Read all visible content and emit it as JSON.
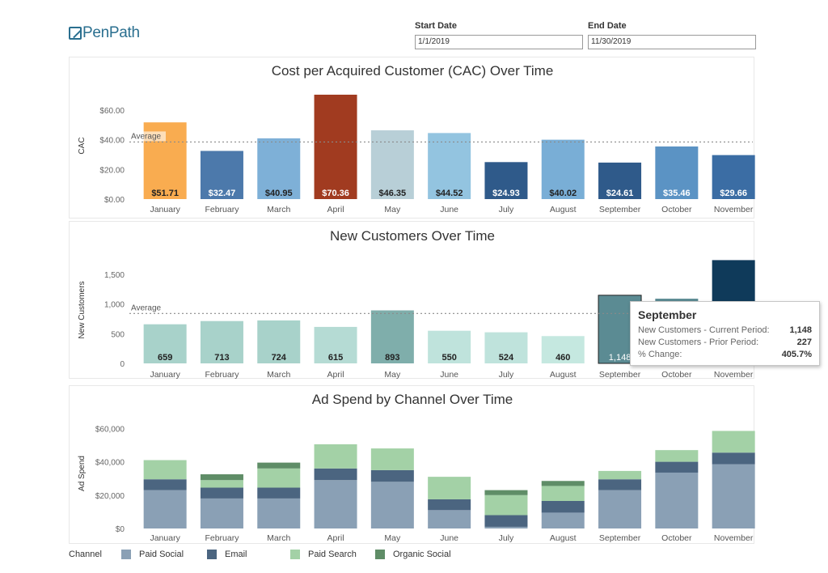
{
  "logo": {
    "text": "PenPath"
  },
  "filters": {
    "start": {
      "label": "Start Date",
      "value": "1/1/2019"
    },
    "end": {
      "label": "End Date",
      "value": "11/30/2019"
    }
  },
  "colors": {
    "avg_line": "#8a8a8a",
    "paid_social": "#8aa0b5",
    "email": "#4b6580",
    "paid_search": "#a3d1a6",
    "organic_social": "#5f8d67"
  },
  "chart_data": [
    {
      "id": "cac",
      "type": "bar",
      "title": "Cost per Acquired Customer (CAC) Over Time",
      "ylabel": "CAC",
      "ylim": [
        0,
        72
      ],
      "yticks": [
        0,
        20,
        40,
        60
      ],
      "ytick_labels": [
        "$0.00",
        "$20.00",
        "$40.00",
        "$60.00"
      ],
      "categories": [
        "January",
        "February",
        "March",
        "April",
        "May",
        "June",
        "July",
        "August",
        "September",
        "October",
        "November"
      ],
      "values": [
        51.71,
        32.47,
        40.95,
        70.36,
        46.35,
        44.52,
        24.93,
        40.02,
        24.61,
        35.46,
        29.66
      ],
      "value_labels": [
        "$51.71",
        "$32.47",
        "$40.95",
        "$70.36",
        "$46.35",
        "$44.52",
        "$24.93",
        "$40.02",
        "$24.61",
        "$35.46",
        "$29.66"
      ],
      "bar_colors": [
        "#f9ac50",
        "#4c79ab",
        "#7eb0d7",
        "#a13b20",
        "#b8cfd7",
        "#93c4e0",
        "#2f5a8a",
        "#79aed6",
        "#2f5a8a",
        "#5b93c4",
        "#3b6da4"
      ],
      "label_colors": [
        "#222222",
        "#ffffff",
        "#222222",
        "#ffffff",
        "#222222",
        "#222222",
        "#ffffff",
        "#222222",
        "#ffffff",
        "#ffffff",
        "#ffffff"
      ],
      "reference_line": {
        "label": "Average",
        "value": 38.5
      },
      "grid": false
    },
    {
      "id": "new_customers",
      "type": "bar",
      "title": "New Customers Over Time",
      "ylabel": "New Customers",
      "ylim": [
        0,
        1800
      ],
      "yticks": [
        0,
        500,
        1000,
        1500
      ],
      "ytick_labels": [
        "0",
        "500",
        "1,000",
        "1,500"
      ],
      "categories": [
        "January",
        "February",
        "March",
        "April",
        "May",
        "June",
        "July",
        "August",
        "September",
        "October",
        "November"
      ],
      "values": [
        659,
        713,
        724,
        615,
        893,
        550,
        524,
        460,
        1148,
        1090,
        1740
      ],
      "value_labels": [
        "659",
        "713",
        "724",
        "615",
        "893",
        "550",
        "524",
        "460",
        "1,148",
        "",
        ""
      ],
      "bar_colors": [
        "#a8d2ca",
        "#a8d2ca",
        "#a8d2ca",
        "#b5dbd4",
        "#7faeab",
        "#bfe3dc",
        "#bfe3dc",
        "#c5e8e0",
        "#5b8b93",
        "#5b8b93",
        "#0f3a5a"
      ],
      "label_colors": [
        "#222222",
        "#222222",
        "#222222",
        "#222222",
        "#222222",
        "#222222",
        "#222222",
        "#222222",
        "#ffffff",
        "#ffffff",
        "#ffffff"
      ],
      "highlight_index": 8,
      "reference_line": {
        "label": "Average",
        "value": 841
      },
      "grid": false
    },
    {
      "id": "ad_spend",
      "type": "bar",
      "stacked": true,
      "title": "Ad Spend by Channel Over Time",
      "ylabel": "Ad Spend",
      "ylim": [
        0,
        66000
      ],
      "yticks": [
        0,
        20000,
        40000,
        60000
      ],
      "ytick_labels": [
        "$0",
        "$20,000",
        "$40,000",
        "$60,000"
      ],
      "categories": [
        "January",
        "February",
        "March",
        "April",
        "May",
        "June",
        "July",
        "August",
        "September",
        "October",
        "November"
      ],
      "series": [
        {
          "name": "Paid Social",
          "color": "#8aa0b5",
          "values": [
            23000,
            18000,
            18000,
            29000,
            28000,
            11000,
            1000,
            9500,
            23000,
            33500,
            38500
          ]
        },
        {
          "name": "Email",
          "color": "#4b6580",
          "values": [
            6500,
            6500,
            6500,
            7000,
            7000,
            6500,
            7000,
            7000,
            6500,
            6500,
            7000
          ]
        },
        {
          "name": "Paid Search",
          "color": "#a3d1a6",
          "values": [
            11500,
            4500,
            11500,
            14500,
            13000,
            13500,
            12000,
            9000,
            5000,
            7000,
            13000
          ]
        },
        {
          "name": "Organic Social",
          "color": "#5f8d67",
          "values": [
            0,
            3500,
            3500,
            0,
            0,
            0,
            3000,
            3000,
            0,
            0,
            0
          ]
        }
      ],
      "grid": false
    }
  ],
  "legend": {
    "title": "Channel",
    "items": [
      {
        "name": "Paid Social",
        "color": "#8aa0b5"
      },
      {
        "name": "Email",
        "color": "#4b6580"
      },
      {
        "name": "Paid Search",
        "color": "#a3d1a6"
      },
      {
        "name": "Organic Social",
        "color": "#5f8d67"
      }
    ]
  },
  "tooltip": {
    "title": "September",
    "rows": [
      {
        "label": "New Customers - Current Period:",
        "value": "1,148"
      },
      {
        "label": "New Customers - Prior Period:",
        "value": "227"
      },
      {
        "label": "% Change:",
        "value": "405.7%"
      }
    ]
  }
}
